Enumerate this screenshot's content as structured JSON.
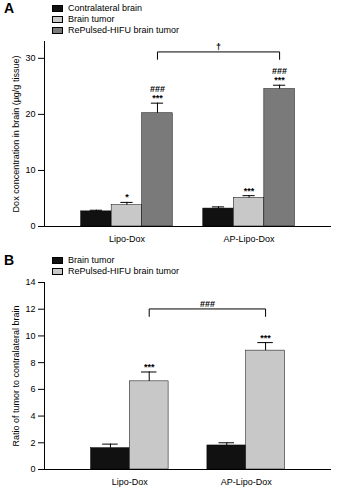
{
  "chart_data": [
    {
      "type": "bar",
      "title": "A",
      "ylabel": "Dox concentration in brain (µg/g tissue)",
      "categories": [
        "Lipo-Dox",
        "AP-Lipo-Dox"
      ],
      "series": [
        {
          "name": "Contralateral brain",
          "color": "#111111",
          "values": [
            2.7,
            3.2
          ],
          "errors": [
            0.2,
            0.3
          ]
        },
        {
          "name": "Brain tumor",
          "color": "#c8c8c8",
          "values": [
            3.8,
            5.1
          ],
          "errors": [
            0.5,
            0.4
          ]
        },
        {
          "name": "RePulsed-HIFU brain tumor",
          "color": "#7a7a7a",
          "values": [
            20.2,
            24.5
          ],
          "errors": [
            1.8,
            0.7
          ]
        }
      ],
      "ylim": [
        0,
        33
      ],
      "yticks": [
        0,
        10,
        20,
        30
      ],
      "legend": "top-left",
      "annotations": [
        {
          "text": "*",
          "category": "Lipo-Dox",
          "series": "Brain tumor"
        },
        {
          "text": "###\n***",
          "category": "Lipo-Dox",
          "series": "RePulsed-HIFU brain tumor"
        },
        {
          "text": "***",
          "category": "AP-Lipo-Dox",
          "series": "Brain tumor"
        },
        {
          "text": "###\n***",
          "category": "AP-Lipo-Dox",
          "series": "RePulsed-HIFU brain tumor"
        },
        {
          "text": "†",
          "series": "RePulsed-HIFU brain tumor",
          "from": "Lipo-Dox",
          "to": "AP-Lipo-Dox"
        }
      ]
    },
    {
      "type": "bar",
      "title": "B",
      "ylabel": "Ratio of tumor to contralateral brain",
      "categories": [
        "Lipo-Dox",
        "AP-Lipo-Dox"
      ],
      "series": [
        {
          "name": "Brain tumor",
          "color": "#111111",
          "values": [
            1.6,
            1.8
          ],
          "errors": [
            0.3,
            0.2
          ]
        },
        {
          "name": "RePulsed-HIFU brain tumor",
          "color": "#c8c8c8",
          "values": [
            6.6,
            8.9
          ],
          "errors": [
            0.7,
            0.6
          ]
        }
      ],
      "ylim": [
        0,
        14
      ],
      "yticks": [
        0,
        2,
        4,
        6,
        8,
        10,
        12,
        14
      ],
      "legend": "top-left",
      "annotations": [
        {
          "text": "***",
          "category": "Lipo-Dox",
          "series": "RePulsed-HIFU brain tumor"
        },
        {
          "text": "***",
          "category": "AP-Lipo-Dox",
          "series": "RePulsed-HIFU brain tumor"
        },
        {
          "text": "###",
          "series": "RePulsed-HIFU brain tumor",
          "from": "Lipo-Dox",
          "to": "AP-Lipo-Dox"
        }
      ]
    }
  ]
}
